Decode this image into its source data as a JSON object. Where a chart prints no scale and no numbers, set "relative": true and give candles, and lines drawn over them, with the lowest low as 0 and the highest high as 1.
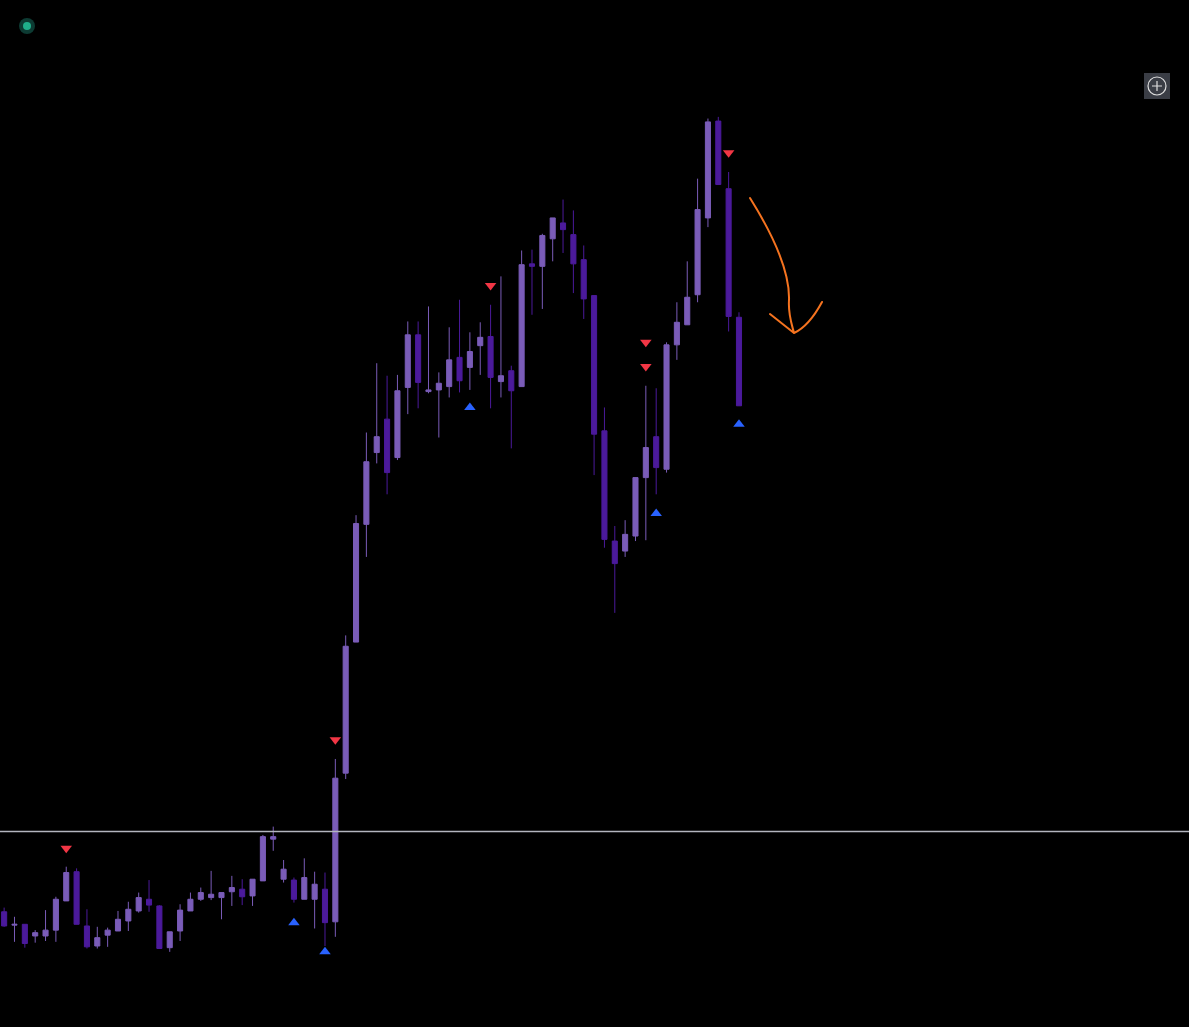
{
  "chart_data": {
    "type": "candlestick",
    "relative": true,
    "categories": [
      null,
      null,
      null,
      null,
      null,
      null,
      null,
      null,
      null,
      null,
      null,
      null,
      null,
      null,
      null,
      null,
      null,
      null,
      null,
      null,
      null,
      null,
      null,
      null,
      null,
      null,
      null,
      null,
      null,
      null,
      null,
      null,
      null,
      null,
      null,
      null,
      null,
      null,
      null,
      null,
      null,
      null,
      null,
      null,
      null,
      null,
      null,
      null,
      null,
      null,
      null,
      null,
      null,
      null,
      null,
      null,
      null,
      null,
      null,
      null,
      null,
      null,
      null,
      null,
      null,
      null,
      null,
      null,
      null,
      null,
      null,
      null
    ],
    "ohlc": [
      [
        0.048,
        0.053,
        0.03,
        0.031
      ],
      [
        0.032,
        0.042,
        0.012,
        0.033
      ],
      [
        0.033,
        0.033,
        0.005,
        0.01
      ],
      [
        0.019,
        0.026,
        0.011,
        0.023
      ],
      [
        0.019,
        0.05,
        0.013,
        0.026
      ],
      [
        0.026,
        0.066,
        0.012,
        0.063
      ],
      [
        0.061,
        0.102,
        0.061,
        0.095
      ],
      [
        0.096,
        0.1,
        0.033,
        0.033
      ],
      [
        0.031,
        0.051,
        0.004,
        0.006
      ],
      [
        0.007,
        0.03,
        0.004,
        0.017
      ],
      [
        0.02,
        0.029,
        0.006,
        0.026
      ],
      [
        0.025,
        0.049,
        0.025,
        0.039
      ],
      [
        0.037,
        0.06,
        0.025,
        0.051
      ],
      [
        0.049,
        0.071,
        0.047,
        0.065
      ],
      [
        0.063,
        0.086,
        0.048,
        0.056
      ],
      [
        0.055,
        0.056,
        0.004,
        0.004
      ],
      [
        0.005,
        0.024,
        0,
        0.024
      ],
      [
        0.025,
        0.057,
        0.013,
        0.05
      ],
      [
        0.049,
        0.071,
        0.049,
        0.063
      ],
      [
        0.063,
        0.077,
        0.061,
        0.071
      ],
      [
        0.065,
        0.097,
        0.062,
        0.069
      ],
      [
        0.065,
        0.071,
        0.039,
        0.071
      ],
      [
        0.072,
        0.091,
        0.055,
        0.077
      ],
      [
        0.075,
        0.087,
        0.056,
        0.066
      ],
      [
        0.067,
        0.087,
        0.055,
        0.087
      ],
      [
        0.085,
        0.14,
        0.085,
        0.138
      ],
      [
        0.135,
        0.15,
        0.121,
        0.138
      ],
      [
        0.087,
        0.11,
        0.083,
        0.099
      ],
      [
        0.086,
        0.089,
        0.059,
        0.063
      ],
      [
        0.063,
        0.112,
        0.063,
        0.089
      ],
      [
        0.063,
        0.096,
        0.028,
        0.081
      ],
      [
        0.075,
        0.095,
        0.007,
        0.035
      ],
      [
        0.036,
        0.231,
        0.018,
        0.208
      ],
      [
        0.214,
        0.379,
        0.207,
        0.366
      ],
      [
        0.371,
        0.523,
        0.371,
        0.513
      ],
      [
        0.512,
        0.622,
        0.473,
        0.587
      ],
      [
        0.598,
        0.705,
        0.585,
        0.617
      ],
      [
        0.638,
        0.69,
        0.548,
        0.574
      ],
      [
        0.592,
        0.691,
        0.589,
        0.672
      ],
      [
        0.676,
        0.755,
        0.644,
        0.739
      ],
      [
        0.739,
        0.755,
        0.651,
        0.682
      ],
      [
        0.671,
        0.773,
        0.669,
        0.673
      ],
      [
        0.673,
        0.694,
        0.616,
        0.681
      ],
      [
        0.677,
        0.748,
        0.664,
        0.709
      ],
      [
        0.712,
        0.781,
        0.67,
        0.684
      ],
      [
        0.7,
        0.742,
        0.673,
        0.719
      ],
      [
        0.726,
        0.754,
        0.691,
        0.736
      ],
      [
        0.737,
        0.775,
        0.651,
        0.688
      ],
      [
        0.683,
        0.809,
        0.664,
        0.69
      ],
      [
        0.696,
        0.702,
        0.603,
        0.672
      ],
      [
        0.677,
        0.84,
        0.677,
        0.823
      ],
      [
        0.824,
        0.841,
        0.763,
        0.821
      ],
      [
        0.821,
        0.86,
        0.77,
        0.858
      ],
      [
        0.854,
        0.879,
        0.827,
        0.879
      ],
      [
        0.873,
        0.901,
        0.837,
        0.865
      ],
      [
        0.859,
        0.888,
        0.789,
        0.824
      ],
      [
        0.829,
        0.846,
        0.758,
        0.782
      ],
      [
        0.786,
        0.786,
        0.571,
        0.62
      ],
      [
        0.624,
        0.652,
        0.484,
        0.494
      ],
      [
        0.492,
        0.51,
        0.406,
        0.465
      ],
      [
        0.48,
        0.517,
        0.473,
        0.5
      ],
      [
        0.498,
        0.568,
        0.492,
        0.568
      ],
      [
        0.568,
        0.678,
        0.493,
        0.604
      ],
      [
        0.617,
        0.675,
        0.548,
        0.58
      ],
      [
        0.578,
        0.73,
        0.574,
        0.727
      ],
      [
        0.727,
        0.778,
        0.709,
        0.754
      ],
      [
        0.751,
        0.827,
        0.751,
        0.784
      ],
      [
        0.787,
        0.926,
        0.778,
        0.889
      ],
      [
        0.879,
        0.998,
        0.868,
        0.994
      ],
      [
        0.995,
        1,
        0.919,
        0.919
      ],
      [
        0.914,
        0.934,
        0.743,
        0.761
      ],
      [
        0.76,
        0.766,
        0.654,
        0.654
      ]
    ],
    "colors": [
      "#4b1a9b",
      "#7a5cb8",
      "#4b1a9b",
      "#7a5cb8",
      "#7a5cb8",
      "#7a5cb8",
      "#7a5cb8",
      "#4b1a9b",
      "#4b1a9b",
      "#7a5cb8",
      "#7a5cb8",
      "#7a5cb8",
      "#7a5cb8",
      "#7a5cb8",
      "#4b1a9b",
      "#4b1a9b",
      "#7a5cb8",
      "#7a5cb8",
      "#7a5cb8",
      "#7a5cb8",
      "#7a5cb8",
      "#7a5cb8",
      "#7a5cb8",
      "#4b1a9b",
      "#7a5cb8",
      "#7a5cb8",
      "#7a5cb8",
      "#7a5cb8",
      "#4b1a9b",
      "#7a5cb8",
      "#7a5cb8",
      "#4b1a9b",
      "#7a5cb8",
      "#7a5cb8",
      "#7a5cb8",
      "#7a5cb8",
      "#7a5cb8",
      "#4b1a9b",
      "#7a5cb8",
      "#7a5cb8",
      "#4b1a9b",
      "#7a5cb8",
      "#7a5cb8",
      "#7a5cb8",
      "#4b1a9b",
      "#7a5cb8",
      "#7a5cb8",
      "#4b1a9b",
      "#7a5cb8",
      "#4b1a9b",
      "#7a5cb8",
      "#4b1a9b",
      "#7a5cb8",
      "#7a5cb8",
      "#4b1a9b",
      "#4b1a9b",
      "#4b1a9b",
      "#4b1a9b",
      "#4b1a9b",
      "#4b1a9b",
      "#7a5cb8",
      "#7a5cb8",
      "#7a5cb8",
      "#4b1a9b",
      "#7a5cb8",
      "#7a5cb8",
      "#7a5cb8",
      "#7a5cb8",
      "#7a5cb8",
      "#4b1a9b",
      "#4b1a9b",
      "#4b1a9b"
    ],
    "series": [
      {
        "type": "scatter",
        "marker": "triangle",
        "color": "#f23645",
        "values": [
          null,
          null,
          null,
          null,
          null,
          null,
          0.124,
          null,
          null,
          null,
          null,
          null,
          null,
          null,
          null,
          null,
          null,
          null,
          null,
          null,
          null,
          null,
          null,
          null,
          null,
          null,
          null,
          null,
          null,
          null,
          null,
          null,
          0.254,
          null,
          null,
          null,
          null,
          null,
          null,
          null,
          null,
          null,
          null,
          null,
          null,
          null,
          null,
          0.798,
          null,
          null,
          null,
          null,
          null,
          null,
          null,
          null,
          null,
          null,
          null,
          null,
          null,
          null,
          0.73,
          null,
          null,
          null,
          null,
          null,
          null,
          null,
          0.957,
          null
        ]
      },
      {
        "type": "scatter",
        "marker": "triangle",
        "color": "#f23645",
        "values": [
          null,
          null,
          null,
          null,
          null,
          null,
          null,
          null,
          null,
          null,
          null,
          null,
          null,
          null,
          null,
          null,
          null,
          null,
          null,
          null,
          null,
          null,
          null,
          null,
          null,
          null,
          null,
          null,
          null,
          null,
          null,
          null,
          null,
          null,
          null,
          null,
          null,
          null,
          null,
          null,
          null,
          null,
          null,
          null,
          null,
          null,
          null,
          null,
          null,
          null,
          null,
          null,
          null,
          null,
          null,
          null,
          null,
          null,
          null,
          null,
          null,
          null,
          0.701,
          null,
          null,
          null,
          null,
          null,
          null,
          null,
          null,
          null
        ]
      },
      {
        "type": "scatter",
        "marker": "triangle",
        "color": "#2962ff",
        "values": [
          null,
          null,
          null,
          null,
          null,
          null,
          null,
          null,
          null,
          null,
          null,
          null,
          null,
          null,
          null,
          null,
          null,
          null,
          null,
          null,
          null,
          null,
          null,
          null,
          null,
          null,
          null,
          null,
          0.035,
          null,
          null,
          0,
          null,
          null,
          null,
          null,
          null,
          null,
          null,
          null,
          null,
          null,
          null,
          null,
          null,
          0.652,
          null,
          null,
          null,
          null,
          null,
          null,
          null,
          null,
          null,
          null,
          null,
          null,
          null,
          null,
          null,
          null,
          null,
          0.525,
          null,
          null,
          null,
          null,
          null,
          null,
          null,
          0.632
        ]
      }
    ],
    "ref_lines": [
      {
        "axis": "y",
        "value": 0.144,
        "color": "#b2b5be"
      }
    ]
  }
}
